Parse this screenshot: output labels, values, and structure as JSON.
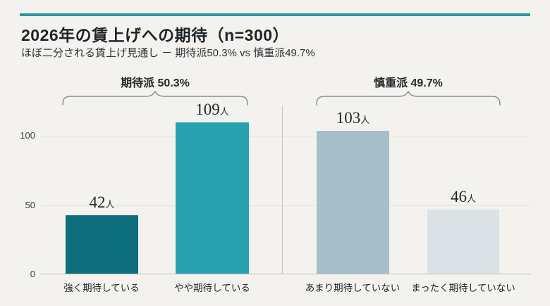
{
  "page": {
    "title": "2026年の賃上げへの期待（n=300）",
    "subtitle": "ほぼ二分される賃上げ見通し － 期待派50.3% vs 慎重派49.7%",
    "accent_color": "#2b93a1",
    "background_color": "#f3f2ee"
  },
  "chart_data": {
    "type": "bar",
    "title": "2026年の賃上げへの期待（n=300）",
    "subtitle": "ほぼ二分される賃上げ見通し － 期待派50.3% vs 慎重派49.7%",
    "categories": [
      "強く期待している",
      "やや期待している",
      "あまり期待していない",
      "まったく期待していない"
    ],
    "values": [
      42,
      109,
      103,
      46
    ],
    "unit": "人",
    "bar_colors": [
      "#0e6e7c",
      "#29a2b0",
      "#a6bfc9",
      "#dbe2e6"
    ],
    "ylabel": "",
    "xlabel": "",
    "ylim": [
      0,
      120
    ],
    "yticks": [
      "0",
      "50",
      "100"
    ],
    "grid": true,
    "legend": false,
    "groups": [
      {
        "label": "期待派 50.3%",
        "bars": [
          0,
          1
        ]
      },
      {
        "label": "慎重派 49.7%",
        "bars": [
          2,
          3
        ]
      }
    ]
  }
}
